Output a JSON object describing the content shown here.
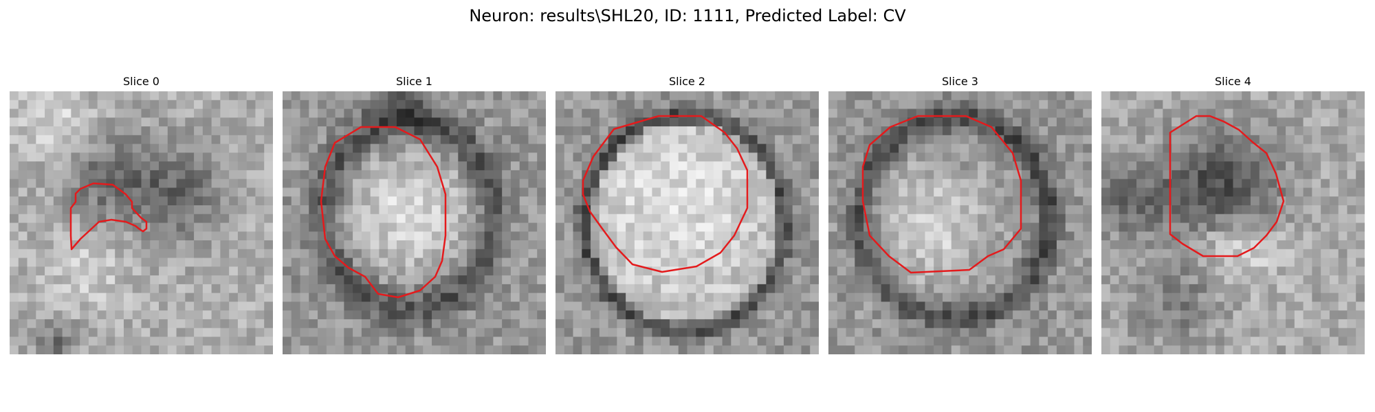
{
  "figure": {
    "title": "Neuron: results\\SHL20, ID: 1111, Predicted Label: CV",
    "contour_color": "#e41a1c"
  },
  "slices": [
    {
      "label": "Slice 0"
    },
    {
      "label": "Slice 1"
    },
    {
      "label": "Slice 2"
    },
    {
      "label": "Slice 3"
    },
    {
      "label": "Slice 4"
    }
  ]
}
